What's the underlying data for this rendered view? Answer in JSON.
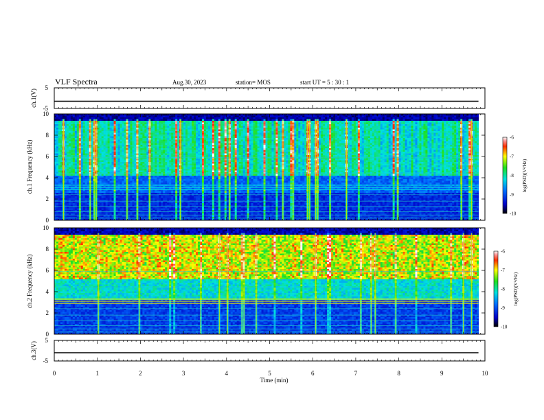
{
  "header": {
    "title": "VLF Spectra",
    "date": "Aug.30, 2023",
    "station": "station= MOS",
    "start": "start  UT  =   5  : 30 : 1"
  },
  "chart_data": [
    {
      "type": "line",
      "panel": "ch1-waveform",
      "ylabel": "ch.1(V)",
      "ylim": [
        -5,
        5
      ],
      "yticks": [
        "5",
        "-5"
      ],
      "xlim": [
        0,
        10
      ],
      "series": [
        {
          "x": [
            0,
            9.85
          ],
          "values": [
            -1.5,
            -1.5
          ]
        }
      ]
    },
    {
      "type": "heatmap",
      "panel": "ch1-spectrogram",
      "ylabel": "ch.1 Frequency (kHz)",
      "ylim": [
        0,
        10
      ],
      "yticks": [
        "0",
        "2",
        "4",
        "6",
        "8",
        "10"
      ],
      "xlim": [
        0,
        10
      ],
      "colorbar": {
        "label": "log(PSD)(V²/Hz)",
        "range": [
          -10,
          -6
        ],
        "ticks": [
          "-6",
          "-7",
          "-8",
          "-9",
          "-10"
        ]
      }
    },
    {
      "type": "heatmap",
      "panel": "ch2-spectrogram",
      "ylabel": "ch.2 Frequency (kHz)",
      "ylim": [
        0,
        10
      ],
      "yticks": [
        "0",
        "2",
        "4",
        "6",
        "8",
        "10"
      ],
      "xlim": [
        0,
        10
      ],
      "colorbar": {
        "label": "log(PSD)(V²/Hz)",
        "range": [
          -10,
          -6
        ],
        "ticks": [
          "-6",
          "-7",
          "-8",
          "-9",
          "-10"
        ]
      }
    },
    {
      "type": "line",
      "panel": "ch3-waveform",
      "ylabel": "ch.3(V)",
      "ylim": [
        -5,
        5
      ],
      "yticks": [
        "5",
        "-5"
      ],
      "xlim": [
        0,
        10
      ],
      "xticks": [
        "0",
        "1",
        "2",
        "3",
        "4",
        "5",
        "6",
        "7",
        "8",
        "9",
        "10"
      ],
      "xlabel": "Time  (min)",
      "series": [
        {
          "x": [
            0,
            9.85
          ],
          "values": [
            -1.0,
            -1.0
          ]
        }
      ]
    }
  ]
}
